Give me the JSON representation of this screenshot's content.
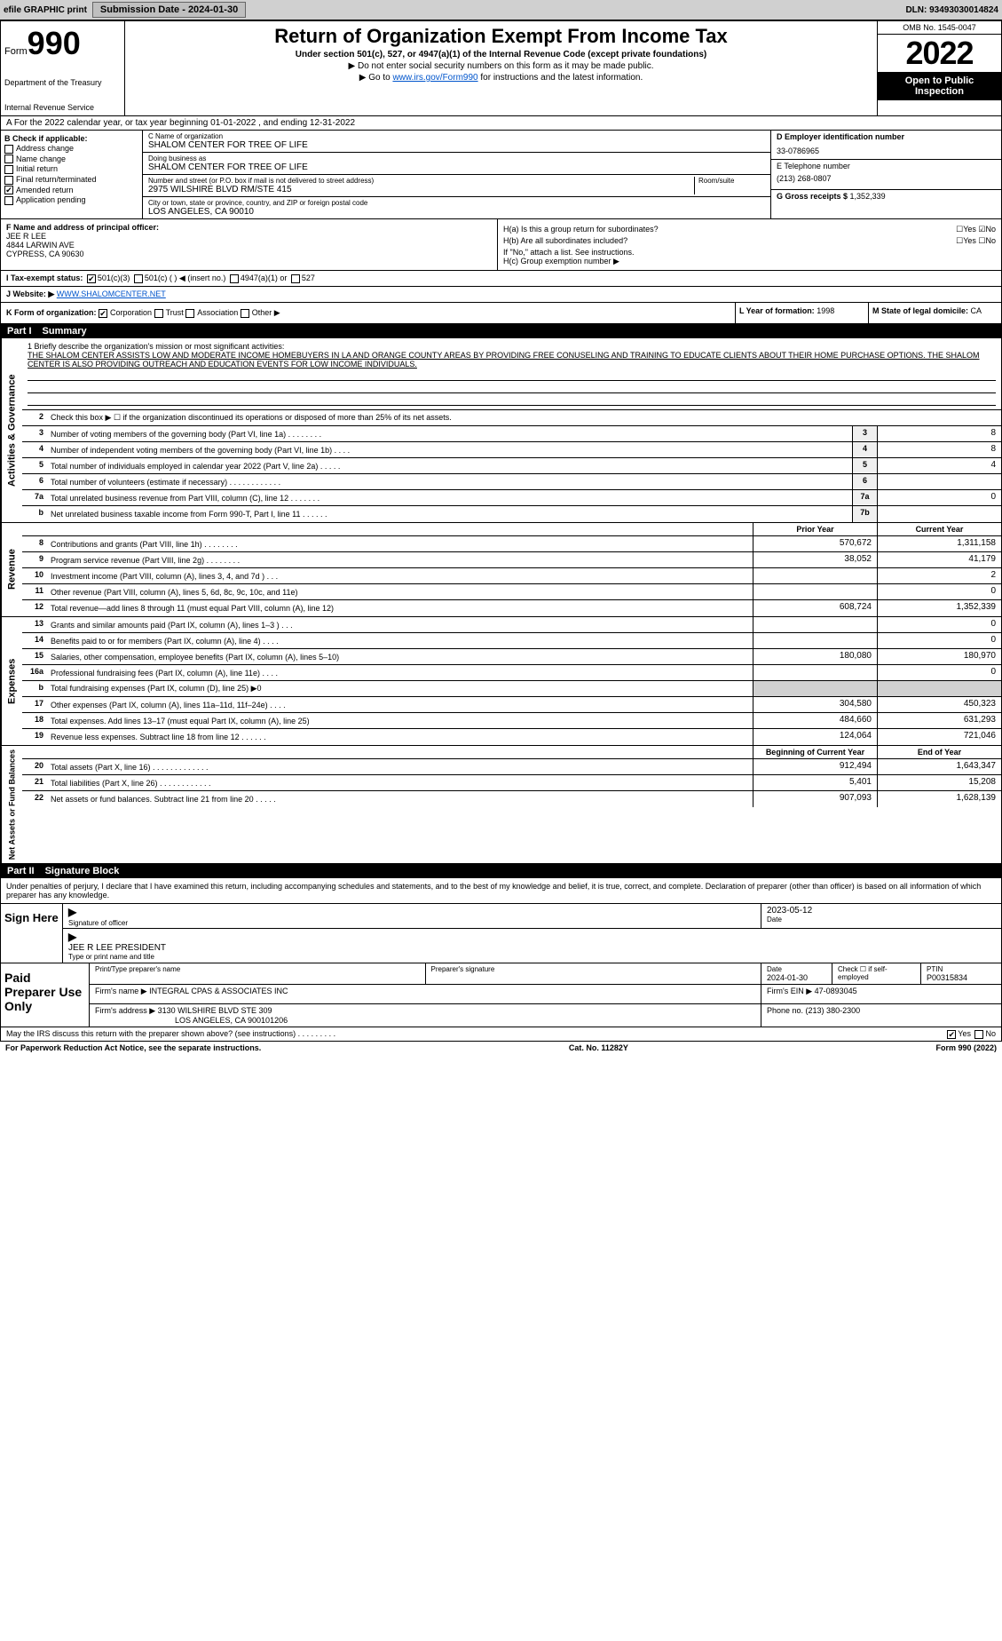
{
  "topbar": {
    "efile": "efile GRAPHIC print",
    "submission_label": "Submission Date - ",
    "submission_date": "2024-01-30",
    "dln_label": "DLN: ",
    "dln": "93493030014824"
  },
  "header": {
    "form_word": "Form",
    "form_num": "990",
    "dept": "Department of the Treasury",
    "irs": "Internal Revenue Service",
    "title": "Return of Organization Exempt From Income Tax",
    "sub": "Under section 501(c), 527, or 4947(a)(1) of the Internal Revenue Code (except private foundations)",
    "warn": "▶ Do not enter social security numbers on this form as it may be made public.",
    "goto_pre": "▶ Go to ",
    "goto_link": "www.irs.gov/Form990",
    "goto_post": " for instructions and the latest information.",
    "omb": "OMB No. 1545-0047",
    "year": "2022",
    "open": "Open to Public Inspection"
  },
  "row_a": "A For the 2022 calendar year, or tax year beginning 01-01-2022     , and ending 12-31-2022",
  "col_b": {
    "hdr": "B Check if applicable:",
    "items": [
      "Address change",
      "Name change",
      "Initial return",
      "Final return/terminated",
      "Amended return",
      "Application pending"
    ],
    "amended_checked": true
  },
  "col_c": {
    "name_lbl": "C Name of organization",
    "name": "SHALOM CENTER FOR TREE OF LIFE",
    "dba_lbl": "Doing business as",
    "dba": "SHALOM CENTER FOR TREE OF LIFE",
    "addr_lbl": "Number and street (or P.O. box if mail is not delivered to street address)",
    "room_lbl": "Room/suite",
    "addr": "2975 WILSHIRE BLVD RM/STE 415",
    "city_lbl": "City or town, state or province, country, and ZIP or foreign postal code",
    "city": "LOS ANGELES, CA  90010"
  },
  "col_d": {
    "ein_lbl": "D Employer identification number",
    "ein": "33-0786965",
    "phone_lbl": "E Telephone number",
    "phone": "(213) 268-0807",
    "gross_lbl": "G Gross receipts $ ",
    "gross": "1,352,339"
  },
  "col_f": {
    "lbl": "F Name and address of principal officer:",
    "name": "JEE R LEE",
    "addr1": "4844 LARWIN AVE",
    "addr2": "CYPRESS, CA  90630"
  },
  "col_h": {
    "ha": "H(a)  Is this a group return for subordinates?",
    "ha_ans": "☐Yes ☑No",
    "hb": "H(b)  Are all subordinates included?",
    "hb_ans": "☐Yes ☐No",
    "hb_note": "If \"No,\" attach a list. See instructions.",
    "hc": "H(c)  Group exemption number ▶"
  },
  "row_i": {
    "lbl": "I  Tax-exempt status:",
    "opt1": "501(c)(3)",
    "opt2": "501(c) (   ) ◀ (insert no.)",
    "opt3": "4947(a)(1) or",
    "opt4": "527"
  },
  "row_j": {
    "lbl": "J  Website: ▶ ",
    "val": "WWW.SHALOMCENTER.NET"
  },
  "row_k": {
    "lbl": "K Form of organization:",
    "opts": [
      "Corporation",
      "Trust",
      "Association",
      "Other ▶"
    ],
    "l_lbl": "L Year of formation: ",
    "l_val": "1998",
    "m_lbl": "M State of legal domicile: ",
    "m_val": "CA"
  },
  "part1": {
    "num": "Part I",
    "title": "Summary"
  },
  "mission": {
    "lbl": "1  Briefly describe the organization's mission or most significant activities:",
    "text": "THE SHALOM CENTER ASSISTS LOW AND MODERATE INCOME HOMEBUYERS IN LA AND ORANGE COUNTY AREAS BY PROVIDING FREE CONUSELING AND TRAINING TO EDUCATE CLIENTS ABOUT THEIR HOME PURCHASE OPTIONS. THE SHALOM CENTER IS ALSO PROVIDING OUTREACH AND EDUCATION EVENTS FOR LOW INCOME INDIVIDUALS."
  },
  "gov_lines": [
    {
      "n": "2",
      "d": "Check this box ▶ ☐ if the organization discontinued its operations or disposed of more than 25% of its net assets.",
      "bn": "",
      "v": ""
    },
    {
      "n": "3",
      "d": "Number of voting members of the governing body (Part VI, line 1a)  .   .   .   .   .   .   .   .",
      "bn": "3",
      "v": "8"
    },
    {
      "n": "4",
      "d": "Number of independent voting members of the governing body (Part VI, line 1b)  .   .   .   .",
      "bn": "4",
      "v": "8"
    },
    {
      "n": "5",
      "d": "Total number of individuals employed in calendar year 2022 (Part V, line 2a)  .   .   .   .   .",
      "bn": "5",
      "v": "4"
    },
    {
      "n": "6",
      "d": "Total number of volunteers (estimate if necessary)  .   .   .   .   .   .   .   .   .   .   .   .",
      "bn": "6",
      "v": ""
    },
    {
      "n": "7a",
      "d": "Total unrelated business revenue from Part VIII, column (C), line 12  .   .   .   .   .   .   .",
      "bn": "7a",
      "v": "0"
    },
    {
      "n": "b",
      "d": "Net unrelated business taxable income from Form 990-T, Part I, line 11  .   .   .   .   .   .",
      "bn": "7b",
      "v": ""
    }
  ],
  "col_headers": {
    "prior": "Prior Year",
    "current": "Current Year"
  },
  "revenue": [
    {
      "n": "8",
      "d": "Contributions and grants (Part VIII, line 1h)  .   .   .   .   .   .   .   .",
      "p": "570,672",
      "c": "1,311,158"
    },
    {
      "n": "9",
      "d": "Program service revenue (Part VIII, line 2g)  .   .   .   .   .   .   .   .",
      "p": "38,052",
      "c": "41,179"
    },
    {
      "n": "10",
      "d": "Investment income (Part VIII, column (A), lines 3, 4, and 7d )  .   .   .",
      "p": "",
      "c": "2"
    },
    {
      "n": "11",
      "d": "Other revenue (Part VIII, column (A), lines 5, 6d, 8c, 9c, 10c, and 11e)",
      "p": "",
      "c": "0"
    },
    {
      "n": "12",
      "d": "Total revenue—add lines 8 through 11 (must equal Part VIII, column (A), line 12)",
      "p": "608,724",
      "c": "1,352,339"
    }
  ],
  "expenses": [
    {
      "n": "13",
      "d": "Grants and similar amounts paid (Part IX, column (A), lines 1–3 )  .   .   .",
      "p": "",
      "c": "0"
    },
    {
      "n": "14",
      "d": "Benefits paid to or for members (Part IX, column (A), line 4)  .   .   .   .",
      "p": "",
      "c": "0"
    },
    {
      "n": "15",
      "d": "Salaries, other compensation, employee benefits (Part IX, column (A), lines 5–10)",
      "p": "180,080",
      "c": "180,970"
    },
    {
      "n": "16a",
      "d": "Professional fundraising fees (Part IX, column (A), line 11e)  .   .   .   .",
      "p": "",
      "c": "0"
    },
    {
      "n": "b",
      "d": "Total fundraising expenses (Part IX, column (D), line 25) ▶0",
      "p": "gray",
      "c": "gray"
    },
    {
      "n": "17",
      "d": "Other expenses (Part IX, column (A), lines 11a–11d, 11f–24e)  .   .   .   .",
      "p": "304,580",
      "c": "450,323"
    },
    {
      "n": "18",
      "d": "Total expenses. Add lines 13–17 (must equal Part IX, column (A), line 25)",
      "p": "484,660",
      "c": "631,293"
    },
    {
      "n": "19",
      "d": "Revenue less expenses. Subtract line 18 from line 12  .   .   .   .   .   .",
      "p": "124,064",
      "c": "721,046"
    }
  ],
  "net_headers": {
    "beg": "Beginning of Current Year",
    "end": "End of Year"
  },
  "net": [
    {
      "n": "20",
      "d": "Total assets (Part X, line 16)  .   .   .   .   .   .   .   .   .   .   .   .   .",
      "p": "912,494",
      "c": "1,643,347"
    },
    {
      "n": "21",
      "d": "Total liabilities (Part X, line 26)  .   .   .   .   .   .   .   .   .   .   .   .",
      "p": "5,401",
      "c": "15,208"
    },
    {
      "n": "22",
      "d": "Net assets or fund balances. Subtract line 21 from line 20  .   .   .   .   .",
      "p": "907,093",
      "c": "1,628,139"
    }
  ],
  "part2": {
    "num": "Part II",
    "title": "Signature Block"
  },
  "sig_intro": "Under penalties of perjury, I declare that I have examined this return, including accompanying schedules and statements, and to the best of my knowledge and belief, it is true, correct, and complete. Declaration of preparer (other than officer) is based on all information of which preparer has any knowledge.",
  "sign": {
    "here": "Sign Here",
    "sig_lbl": "Signature of officer",
    "date_lbl": "Date",
    "date": "2023-05-12",
    "name": "JEE R LEE  PRESIDENT",
    "name_lbl": "Type or print name and title"
  },
  "prep": {
    "title": "Paid Preparer Use Only",
    "r1": {
      "c1_lbl": "Print/Type preparer's name",
      "c2_lbl": "Preparer's signature",
      "c3_lbl": "Date",
      "c3": "2024-01-30",
      "c4_lbl": "Check ☐ if self-employed",
      "c5_lbl": "PTIN",
      "c5": "P00315834"
    },
    "r2": {
      "lbl": "Firm's name     ▶ ",
      "val": "INTEGRAL CPAS & ASSOCIATES INC",
      "ein_lbl": "Firm's EIN ▶ ",
      "ein": "47-0893045"
    },
    "r3": {
      "lbl": "Firm's address ▶ ",
      "val1": "3130 WILSHIRE BLVD STE 309",
      "val2": "LOS ANGELES, CA  900101206",
      "ph_lbl": "Phone no. ",
      "ph": "(213) 380-2300"
    }
  },
  "discuss": {
    "q": "May the IRS discuss this return with the preparer shown above? (see instructions)  .   .   .   .   .   .   .   .   .",
    "yes": "Yes",
    "no": "No"
  },
  "bottom": {
    "left": "For Paperwork Reduction Act Notice, see the separate instructions.",
    "mid": "Cat. No. 11282Y",
    "right": "Form 990 (2022)"
  }
}
